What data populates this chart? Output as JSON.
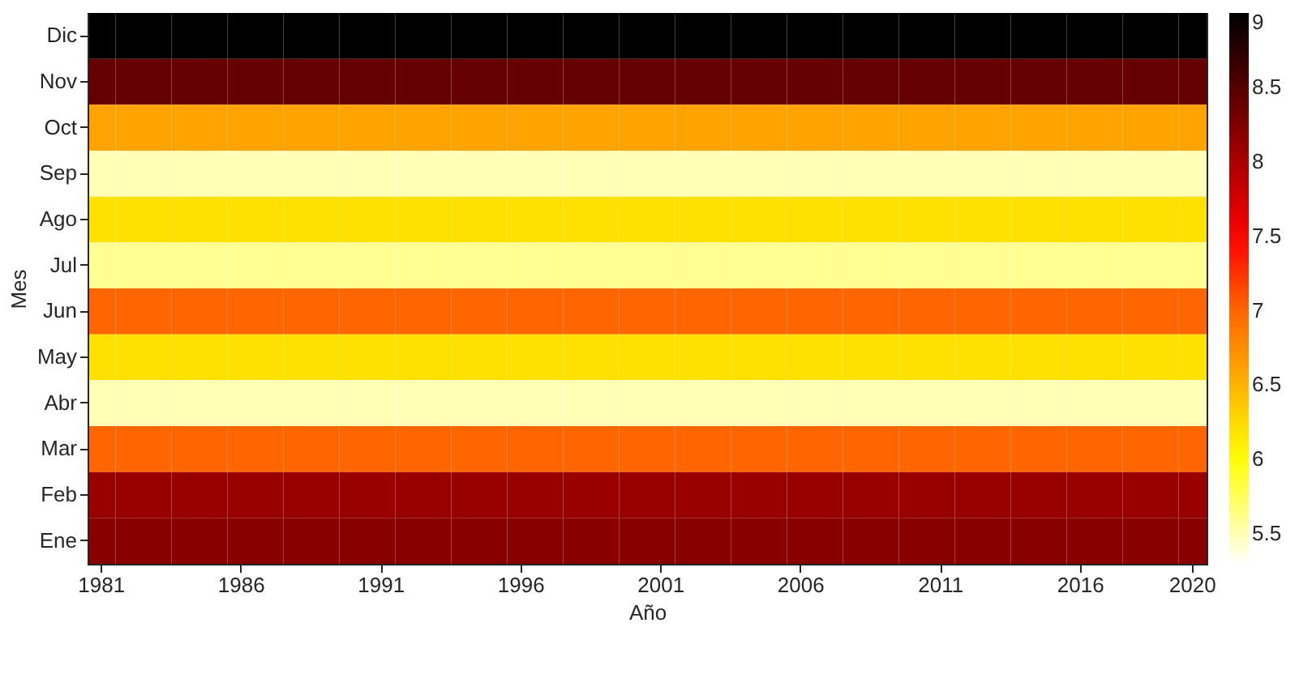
{
  "chart_data": {
    "type": "heatmap",
    "xlabel": "Año",
    "ylabel": "Mes",
    "categories": [
      "1981",
      null,
      null,
      null,
      null,
      "1986",
      null,
      null,
      null,
      null,
      "1991",
      null,
      null,
      null,
      null,
      "1996",
      null,
      null,
      null,
      null,
      "2001",
      null,
      null,
      null,
      null,
      "2006",
      null,
      null,
      null,
      null,
      "2011",
      null,
      null,
      null,
      null,
      "2016",
      null,
      null,
      null,
      "2020"
    ],
    "y_categories": [
      "Dic",
      "Nov",
      "Oct",
      "Sep",
      "Ago",
      "Jul",
      "Jun",
      "May",
      "Abr",
      "Mar",
      "Feb",
      "Ene"
    ],
    "cells": [
      [
        9,
        9,
        9,
        9,
        9,
        9,
        9,
        9,
        9,
        9,
        9,
        9,
        9,
        9,
        9,
        9,
        9,
        9,
        9,
        9,
        9,
        9,
        9,
        9,
        9,
        9,
        9,
        9,
        9,
        9,
        9,
        9,
        9,
        9,
        9,
        9,
        9,
        9,
        9,
        9
      ],
      [
        8.4,
        8.4,
        8.4,
        8.4,
        8.4,
        8.4,
        8.4,
        8.4,
        8.4,
        8.4,
        8.4,
        8.4,
        8.4,
        8.4,
        8.4,
        8.4,
        8.4,
        8.4,
        8.4,
        8.4,
        8.4,
        8.4,
        8.4,
        8.4,
        8.4,
        8.4,
        8.4,
        8.4,
        8.4,
        8.4,
        8.4,
        8.4,
        8.4,
        8.4,
        8.4,
        8.4,
        8.4,
        8.4,
        8.4,
        8.4
      ],
      [
        6.6,
        6.6,
        6.6,
        6.6,
        6.6,
        6.6,
        6.6,
        6.6,
        6.6,
        6.6,
        6.6,
        6.6,
        6.6,
        6.6,
        6.6,
        6.6,
        6.6,
        6.6,
        6.6,
        6.6,
        6.6,
        6.6,
        6.6,
        6.6,
        6.6,
        6.6,
        6.6,
        6.6,
        6.6,
        6.6,
        6.6,
        6.6,
        6.6,
        6.6,
        6.6,
        6.6,
        6.6,
        6.6,
        6.6,
        6.6
      ],
      [
        5.5,
        5.5,
        5.5,
        5.5,
        5.5,
        5.5,
        5.5,
        5.5,
        5.5,
        5.5,
        5.5,
        5.5,
        5.5,
        5.5,
        5.5,
        5.5,
        5.5,
        5.5,
        5.5,
        5.5,
        5.5,
        5.5,
        5.5,
        5.5,
        5.5,
        5.5,
        5.5,
        5.5,
        5.5,
        5.5,
        5.5,
        5.5,
        5.5,
        5.5,
        5.5,
        5.5,
        5.5,
        5.5,
        5.5,
        5.5
      ],
      [
        6.2,
        6.2,
        6.2,
        6.2,
        6.2,
        6.2,
        6.2,
        6.2,
        6.2,
        6.2,
        6.2,
        6.2,
        6.2,
        6.2,
        6.2,
        6.2,
        6.2,
        6.2,
        6.2,
        6.2,
        6.2,
        6.2,
        6.2,
        6.2,
        6.2,
        6.2,
        6.2,
        6.2,
        6.2,
        6.2,
        6.2,
        6.2,
        6.2,
        6.2,
        6.2,
        6.2,
        6.2,
        6.2,
        6.2,
        6.2
      ],
      [
        5.6,
        5.6,
        5.6,
        5.6,
        5.6,
        5.6,
        5.6,
        5.6,
        5.6,
        5.6,
        5.6,
        5.6,
        5.6,
        5.6,
        5.6,
        5.6,
        5.6,
        5.6,
        5.6,
        5.6,
        5.6,
        5.6,
        5.6,
        5.6,
        5.6,
        5.6,
        5.6,
        5.6,
        5.6,
        5.6,
        5.6,
        5.6,
        5.6,
        5.6,
        5.6,
        5.6,
        5.6,
        5.6,
        5.6,
        5.6
      ],
      [
        7,
        7,
        7,
        7,
        7,
        7,
        7,
        7,
        7,
        7,
        7,
        7,
        7,
        7,
        7,
        7,
        7,
        7,
        7,
        7,
        7,
        7,
        7,
        7,
        7,
        7,
        7,
        7,
        7,
        7,
        7,
        7,
        7,
        7,
        7,
        7,
        7,
        7,
        7,
        7
      ],
      [
        6.2,
        6.2,
        6.2,
        6.2,
        6.2,
        6.2,
        6.2,
        6.2,
        6.2,
        6.2,
        6.2,
        6.2,
        6.2,
        6.2,
        6.2,
        6.2,
        6.2,
        6.2,
        6.2,
        6.2,
        6.2,
        6.2,
        6.2,
        6.2,
        6.2,
        6.2,
        6.2,
        6.2,
        6.2,
        6.2,
        6.2,
        6.2,
        6.2,
        6.2,
        6.2,
        6.2,
        6.2,
        6.2,
        6.2,
        6.2
      ],
      [
        5.5,
        5.5,
        5.5,
        5.5,
        5.5,
        5.5,
        5.5,
        5.5,
        5.5,
        5.5,
        5.5,
        5.5,
        5.5,
        5.5,
        5.5,
        5.5,
        5.5,
        5.5,
        5.5,
        5.5,
        5.5,
        5.5,
        5.5,
        5.5,
        5.5,
        5.5,
        5.5,
        5.5,
        5.5,
        5.5,
        5.5,
        5.5,
        5.5,
        5.5,
        5.5,
        5.5,
        5.5,
        5.5,
        5.5,
        5.5
      ],
      [
        7,
        7,
        7,
        7,
        7,
        7,
        7,
        7,
        7,
        7,
        7,
        7,
        7,
        7,
        7,
        7,
        7,
        7,
        7,
        7,
        7,
        7,
        7,
        7,
        7,
        7,
        7,
        7,
        7,
        7,
        7,
        7,
        7,
        7,
        7,
        7,
        7,
        7,
        7,
        7
      ],
      [
        8.1,
        8.1,
        8.1,
        8.1,
        8.1,
        8.1,
        8.1,
        8.1,
        8.1,
        8.1,
        8.1,
        8.1,
        8.1,
        8.1,
        8.1,
        8.1,
        8.1,
        8.1,
        8.1,
        8.1,
        8.1,
        8.1,
        8.1,
        8.1,
        8.1,
        8.1,
        8.1,
        8.1,
        8.1,
        8.1,
        8.1,
        8.1,
        8.1,
        8.1,
        8.1,
        8.1,
        8.1,
        8.1,
        8.1,
        8.1
      ],
      [
        8.2,
        8.2,
        8.2,
        8.2,
        8.2,
        8.2,
        8.2,
        8.2,
        8.2,
        8.2,
        8.2,
        8.2,
        8.2,
        8.2,
        8.2,
        8.2,
        8.2,
        8.2,
        8.2,
        8.2,
        8.2,
        8.2,
        8.2,
        8.2,
        8.2,
        8.2,
        8.2,
        8.2,
        8.2,
        8.2,
        8.2,
        8.2,
        8.2,
        8.2,
        8.2,
        8.2,
        8.2,
        8.2,
        8.2,
        8.2
      ]
    ],
    "clim": [
      5.3,
      9
    ],
    "cticks": [
      5.5,
      6,
      6.5,
      7,
      7.5,
      8,
      8.5,
      9
    ]
  }
}
